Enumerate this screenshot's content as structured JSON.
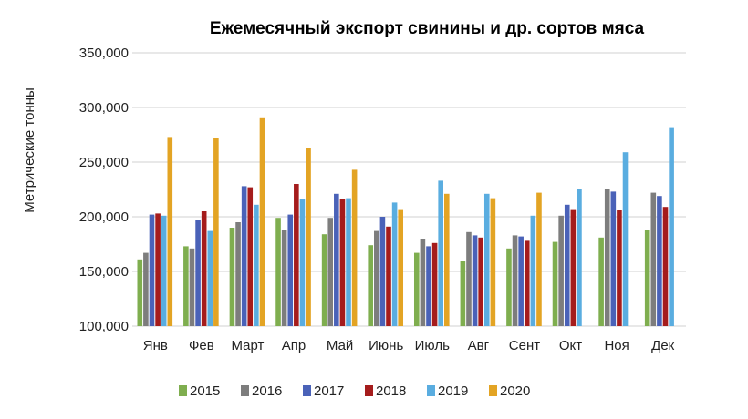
{
  "chart_data": {
    "type": "bar",
    "title": "Ежемесячный экспорт свинины и др. сортов мяса",
    "ylabel": "Метрические тонны",
    "xlabel": "",
    "ylim": [
      100000,
      350000
    ],
    "yticks": [
      "100,000",
      "150,000",
      "200,000",
      "250,000",
      "300,000",
      "350,000"
    ],
    "ytick_values": [
      100000,
      150000,
      200000,
      250000,
      300000,
      350000
    ],
    "grid": true,
    "legend_position": "bottom",
    "categories": [
      "Янв",
      "Фев",
      "Март",
      "Апр",
      "Май",
      "Июнь",
      "Июль",
      "Авг",
      "Сент",
      "Окт",
      "Ноя",
      "Дек"
    ],
    "series": [
      {
        "name": "2015",
        "color": "#7fae4f",
        "values": [
          161000,
          173000,
          190000,
          199000,
          184000,
          174000,
          167000,
          160000,
          171000,
          177000,
          181000,
          188000
        ]
      },
      {
        "name": "2016",
        "color": "#7d7d7d",
        "values": [
          167000,
          171000,
          195000,
          188000,
          199000,
          187000,
          180000,
          186000,
          183000,
          201000,
          225000,
          222000
        ]
      },
      {
        "name": "2017",
        "color": "#4a62b8",
        "values": [
          202000,
          197000,
          228000,
          202000,
          221000,
          200000,
          173000,
          183000,
          182000,
          211000,
          223000,
          219000
        ]
      },
      {
        "name": "2018",
        "color": "#a51c1c",
        "values": [
          203000,
          205000,
          227000,
          230000,
          216000,
          191000,
          176000,
          181000,
          178000,
          207000,
          206000,
          209000
        ]
      },
      {
        "name": "2019",
        "color": "#5aade0",
        "values": [
          201000,
          187000,
          211000,
          216000,
          217000,
          213000,
          233000,
          221000,
          201000,
          225000,
          259000,
          282000
        ]
      },
      {
        "name": "2020",
        "color": "#e3a424",
        "values": [
          273000,
          272000,
          291000,
          263000,
          243000,
          207000,
          221000,
          217000,
          222000,
          null,
          null,
          null
        ]
      }
    ]
  }
}
